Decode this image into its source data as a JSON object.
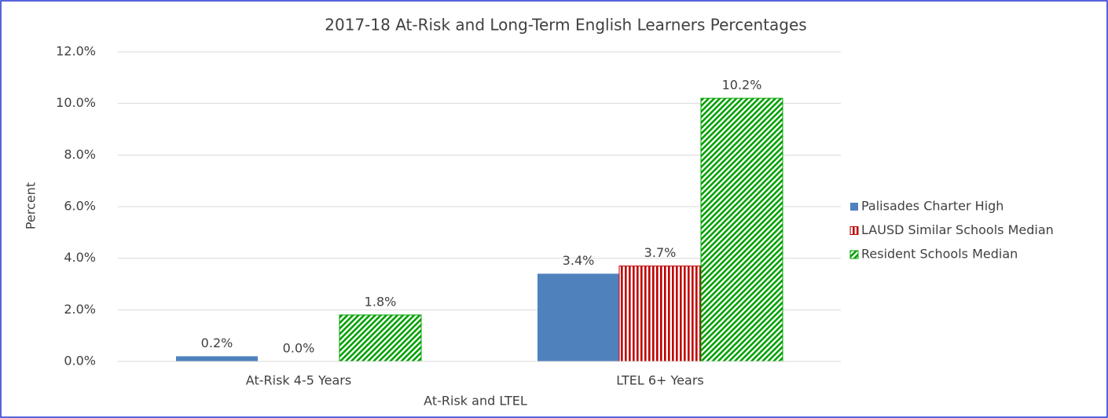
{
  "chart_data": {
    "type": "bar",
    "title": "2017-18 At-Risk and Long-Term English Learners Percentages",
    "x_label": "At-Risk and LTEL",
    "y_label": "Percent",
    "categories": [
      "At-Risk 4-5 Years",
      "LTEL 6+ Years"
    ],
    "series": [
      {
        "name": "Palisades Charter High",
        "color": "#4f81bd",
        "pattern": "solid",
        "values": [
          0.2,
          3.4
        ],
        "value_labels": [
          "0.2%",
          "3.4%"
        ]
      },
      {
        "name": "LAUSD Similar Schools Median",
        "color": "#c00000",
        "pattern": "vertical-stripes",
        "values": [
          0.0,
          3.7
        ],
        "value_labels": [
          "0.0%",
          "3.7%"
        ]
      },
      {
        "name": "Resident Schools Median",
        "color": "#00a000",
        "pattern": "diagonal-stripes",
        "values": [
          1.8,
          10.2
        ],
        "value_labels": [
          "1.8%",
          "10.2%"
        ]
      }
    ],
    "ylim": [
      0,
      12
    ],
    "yticks": [
      {
        "value": 0,
        "label": "0.0%"
      },
      {
        "value": 2,
        "label": "2.0%"
      },
      {
        "value": 4,
        "label": "4.0%"
      },
      {
        "value": 6,
        "label": "6.0%"
      },
      {
        "value": 8,
        "label": "8.0%"
      },
      {
        "value": 10,
        "label": "10.0%"
      },
      {
        "value": 12,
        "label": "12.0%"
      }
    ],
    "grid": true,
    "legend": "right"
  }
}
